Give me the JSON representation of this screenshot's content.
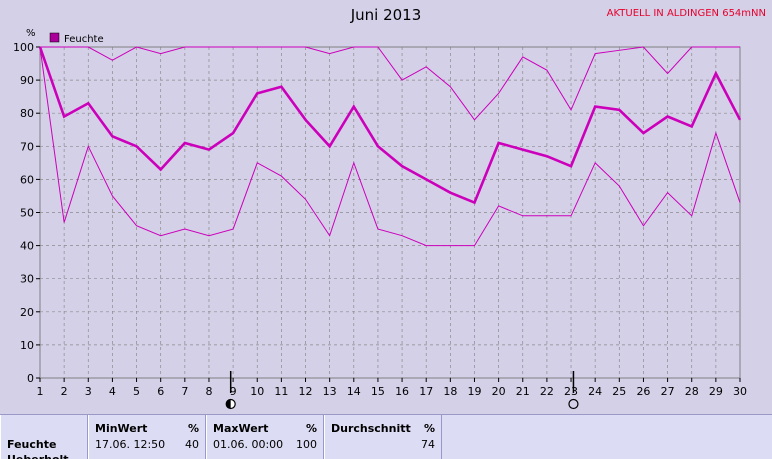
{
  "title": "Juni 2013",
  "subtitle": "AKTUELL IN ALDINGEN 654mNN",
  "chart_data": {
    "type": "line",
    "ylabel": "%",
    "ylim": [
      0,
      100
    ],
    "yticks": [
      0,
      10,
      20,
      30,
      40,
      50,
      60,
      70,
      80,
      90,
      100
    ],
    "x": [
      1,
      2,
      3,
      4,
      5,
      6,
      7,
      8,
      9,
      10,
      11,
      12,
      13,
      14,
      15,
      16,
      17,
      18,
      19,
      20,
      21,
      22,
      23,
      24,
      25,
      26,
      27,
      28,
      29,
      30
    ],
    "grid": true,
    "legend_position": "top-left",
    "series": [
      {
        "name": "Feuchte",
        "role": "mean",
        "values": [
          100,
          79,
          83,
          73,
          70,
          63,
          71,
          69,
          74,
          86,
          88,
          78,
          70,
          82,
          70,
          64,
          60,
          56,
          53,
          71,
          69,
          67,
          64,
          82,
          81,
          74,
          79,
          76,
          92,
          78
        ]
      },
      {
        "role": "max",
        "values": [
          100,
          100,
          100,
          96,
          100,
          98,
          100,
          100,
          100,
          100,
          100,
          100,
          98,
          100,
          100,
          90,
          94,
          88,
          78,
          86,
          97,
          93,
          81,
          98,
          99,
          100,
          92,
          100,
          100,
          100
        ]
      },
      {
        "role": "min",
        "values": [
          100,
          47,
          70,
          55,
          46,
          43,
          45,
          43,
          45,
          65,
          61,
          54,
          43,
          65,
          45,
          43,
          40,
          40,
          40,
          52,
          49,
          49,
          49,
          65,
          58,
          46,
          56,
          49,
          74,
          53
        ]
      }
    ],
    "line_color": "#cc00bb",
    "moon_phases": [
      {
        "day": 8.9,
        "phase": "half"
      },
      {
        "day": 23.1,
        "phase": "full"
      }
    ]
  },
  "summary": {
    "row_label": "Feuchte",
    "row_label2": "Ueberholt",
    "min": {
      "header": "MinWert",
      "unit": "%",
      "time": "17.06.  12:50",
      "value": "40"
    },
    "max": {
      "header": "MaxWert",
      "unit": "%",
      "time": "01.06.  00:00",
      "value": "100"
    },
    "avg": {
      "header": "Durchschnitt",
      "unit": "%",
      "value": "74"
    }
  }
}
